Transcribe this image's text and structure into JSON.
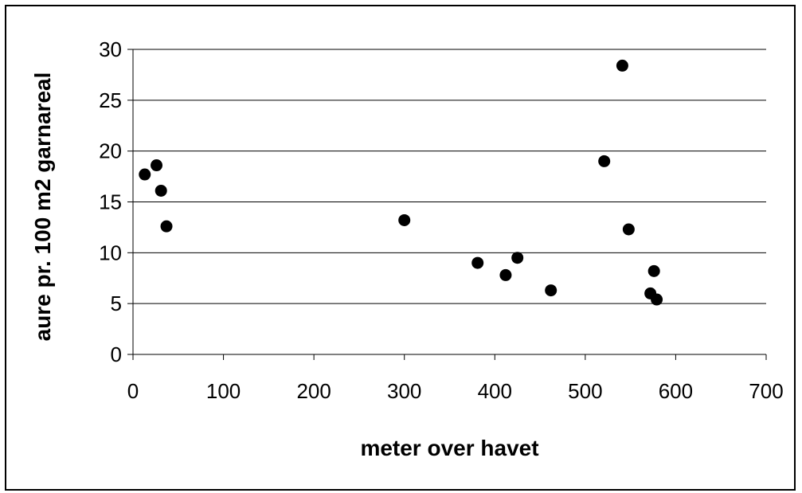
{
  "chart_data": {
    "type": "scatter",
    "title": "",
    "xlabel": "meter over havet",
    "ylabel": "aure pr. 100 m2 garnareal",
    "xlim": [
      0,
      700
    ],
    "ylim": [
      0,
      30
    ],
    "x_ticks": [
      0,
      100,
      200,
      300,
      400,
      500,
      600,
      700
    ],
    "y_ticks": [
      0,
      5,
      10,
      15,
      20,
      25,
      30
    ],
    "grid": "horizontal",
    "legend": "none",
    "colors": {
      "marker": "#000000",
      "grid": "#000000",
      "background": "#ffffff"
    },
    "series": [
      {
        "points": [
          {
            "x": 13,
            "y": 17.7
          },
          {
            "x": 26,
            "y": 18.6
          },
          {
            "x": 31,
            "y": 16.1
          },
          {
            "x": 37,
            "y": 12.6
          },
          {
            "x": 300,
            "y": 13.2
          },
          {
            "x": 381,
            "y": 9.0
          },
          {
            "x": 412,
            "y": 7.8
          },
          {
            "x": 425,
            "y": 9.5
          },
          {
            "x": 462,
            "y": 6.3
          },
          {
            "x": 521,
            "y": 19.0
          },
          {
            "x": 541,
            "y": 28.4
          },
          {
            "x": 548,
            "y": 12.3
          },
          {
            "x": 572,
            "y": 6.0
          },
          {
            "x": 576,
            "y": 8.2
          },
          {
            "x": 579,
            "y": 5.4
          }
        ]
      }
    ]
  }
}
